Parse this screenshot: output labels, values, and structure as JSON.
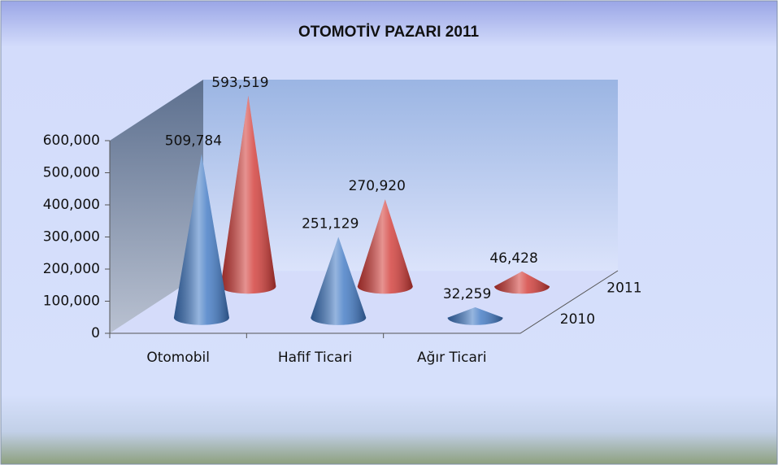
{
  "chart_data": {
    "type": "cone3d",
    "title": "OTOMOTİV PAZARI 2011",
    "categories": [
      "Otomobil",
      "Hafif Ticari",
      "Ağır Ticari"
    ],
    "series": [
      {
        "name": "2010",
        "color": "#3f78c4",
        "values": [
          509784,
          251129,
          32259
        ],
        "value_labels": [
          "509,784",
          "251,129",
          "32,259"
        ]
      },
      {
        "name": "2011",
        "color": "#d23a36",
        "values": [
          593519,
          270920,
          46428
        ],
        "value_labels": [
          "593,519",
          "270,920",
          "46,428"
        ]
      }
    ],
    "ylim": [
      0,
      600000
    ],
    "yticks": [
      0,
      {
        "value": 100000,
        "label": "100,000"
      },
      {
        "value": 200000,
        "label": "200,000"
      },
      {
        "value": 300000,
        "label": "300,000"
      },
      {
        "value": 400000,
        "label": "400,000"
      },
      {
        "value": 500000,
        "label": "500,000"
      },
      {
        "value": 600000,
        "label": "600,000"
      }
    ]
  }
}
